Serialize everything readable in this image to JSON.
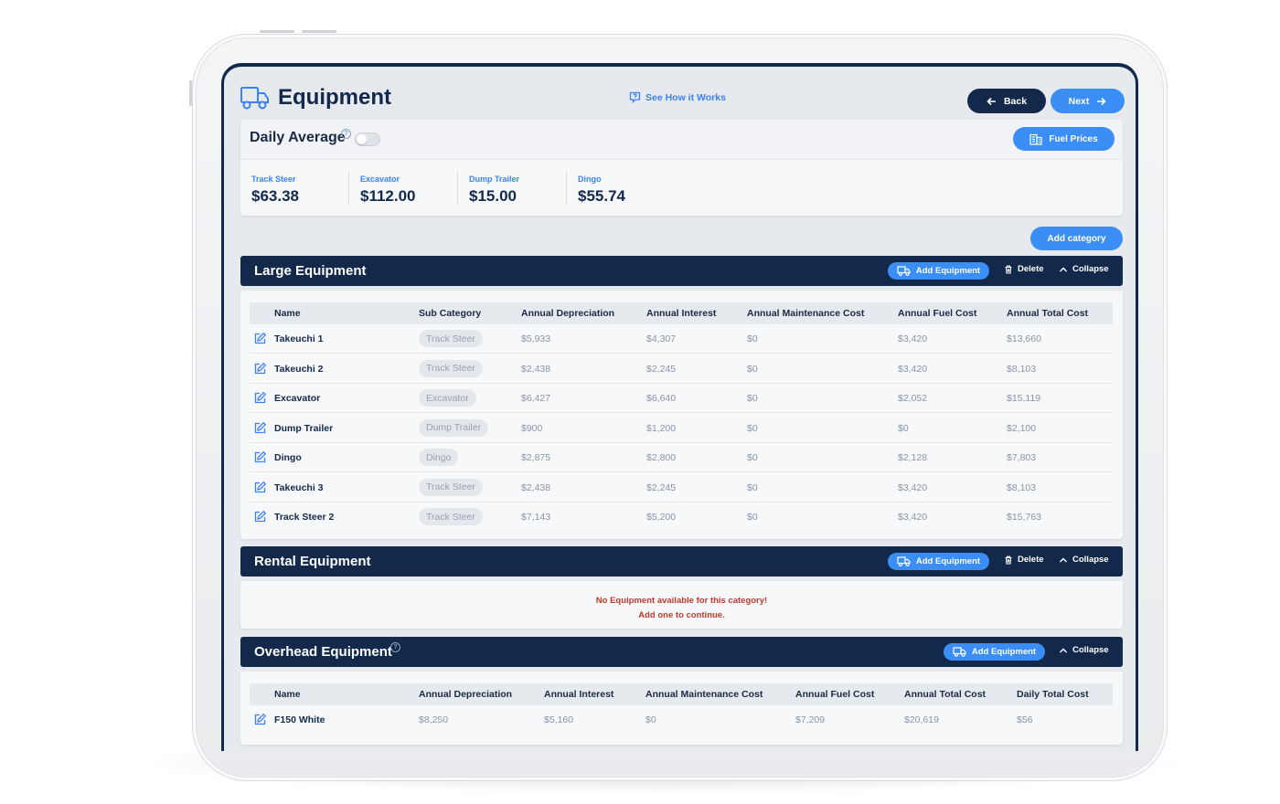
{
  "header": {
    "title": "Equipment",
    "how_link": "See How it Works",
    "back_label": "Back",
    "next_label": "Next"
  },
  "daily": {
    "label": "Daily Average",
    "help": "?",
    "fuel_button": "Fuel Prices",
    "stats": [
      {
        "label": "Track Steer",
        "value": "$63.38"
      },
      {
        "label": "Excavator",
        "value": "$112.00"
      },
      {
        "label": "Dump Trailer",
        "value": "$15.00"
      },
      {
        "label": "Dingo",
        "value": "$55.74"
      }
    ]
  },
  "add_category": "Add category",
  "large": {
    "title": "Large Equipment",
    "add_label": "Add Equipment",
    "delete_label": "Delete",
    "collapse_label": "Collapse",
    "columns": [
      "Name",
      "Sub Category",
      "Annual Depreciation",
      "Annual Interest",
      "Annual Maintenance Cost",
      "Annual Fuel Cost",
      "Annual Total Cost"
    ],
    "rows": [
      {
        "name": "Takeuchi 1",
        "sub": "Track Steer",
        "dep": "$5,933",
        "int": "$4,307",
        "maint": "$0",
        "fuel": "$3,420",
        "total": "$13,660"
      },
      {
        "name": "Takeuchi 2",
        "sub": "Track Steer",
        "dep": "$2,438",
        "int": "$2,245",
        "maint": "$0",
        "fuel": "$3,420",
        "total": "$8,103"
      },
      {
        "name": "Excavator",
        "sub": "Excavator",
        "dep": "$6,427",
        "int": "$6,640",
        "maint": "$0",
        "fuel": "$2,052",
        "total": "$15,119"
      },
      {
        "name": "Dump Trailer",
        "sub": "Dump Trailer",
        "dep": "$900",
        "int": "$1,200",
        "maint": "$0",
        "fuel": "$0",
        "total": "$2,100"
      },
      {
        "name": "Dingo",
        "sub": "Dingo",
        "dep": "$2,875",
        "int": "$2,800",
        "maint": "$0",
        "fuel": "$2,128",
        "total": "$7,803"
      },
      {
        "name": "Takeuchi 3",
        "sub": "Track Steer",
        "dep": "$2,438",
        "int": "$2,245",
        "maint": "$0",
        "fuel": "$3,420",
        "total": "$8,103"
      },
      {
        "name": "Track Steer 2",
        "sub": "Track Steer",
        "dep": "$7,143",
        "int": "$5,200",
        "maint": "$0",
        "fuel": "$3,420",
        "total": "$15,763"
      }
    ]
  },
  "rental": {
    "title": "Rental Equipment",
    "add_label": "Add Equipment",
    "delete_label": "Delete",
    "collapse_label": "Collapse",
    "empty_line1": "No Equipment available for this category!",
    "empty_line2": "Add one to continue."
  },
  "overhead": {
    "title": "Overhead Equipment",
    "help": "?",
    "add_label": "Add Equipment",
    "collapse_label": "Collapse",
    "columns": [
      "Name",
      "Annual Depreciation",
      "Annual Interest",
      "Annual Maintenance Cost",
      "Annual Fuel Cost",
      "Annual Total Cost",
      "Daily Total Cost"
    ],
    "rows": [
      {
        "name": "F150 White",
        "dep": "$8,250",
        "int": "$5,160",
        "maint": "$0",
        "fuel": "$7,209",
        "total": "$20,619",
        "daily": "$56"
      }
    ]
  },
  "colors": {
    "navy": "#13294b",
    "accent_blue": "#3b8ef5",
    "error_red": "#c0392b"
  }
}
